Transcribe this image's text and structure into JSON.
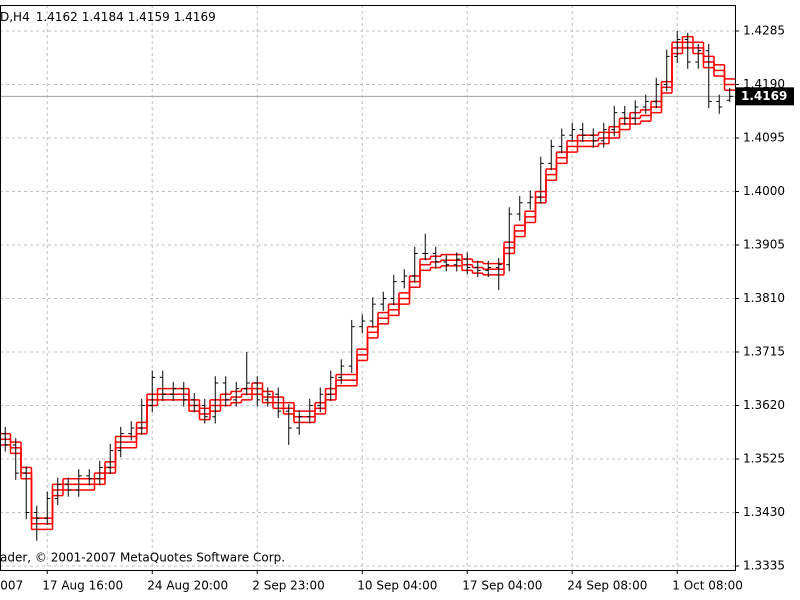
{
  "chart_data": {
    "type": "ohlc",
    "symbol": "D,H4",
    "copyright": "ader, © 2001-2007 MetaQuotes Software Corp.",
    "bar_color": "#000000",
    "current_price_color": "#000000",
    "grid": true,
    "ylim": [
      1.33279,
      1.43312
    ],
    "yticks": [
      1.4285,
      {
        "value": 1.419,
        "label": "1.4190"
      },
      1.4095,
      {
        "value": 1.4,
        "label": "1.4000"
      },
      1.3905,
      {
        "value": 1.381,
        "label": "1.3810"
      },
      1.3715,
      {
        "value": 1.362,
        "label": "1.3620"
      },
      1.3525,
      {
        "value": 1.343,
        "label": "1.3430"
      },
      1.3335
    ],
    "categories": [
      "007",
      null,
      null,
      null,
      "17 Aug 16:00",
      null,
      null,
      null,
      null,
      null,
      null,
      null,
      null,
      null,
      "24 Aug 20:00",
      null,
      null,
      null,
      null,
      null,
      null,
      null,
      null,
      null,
      "2 Sep 23:00",
      null,
      null,
      null,
      null,
      null,
      null,
      null,
      null,
      null,
      "10 Sep 04:00",
      null,
      null,
      null,
      null,
      null,
      null,
      null,
      null,
      null,
      "17 Sep 04:00",
      null,
      null,
      null,
      null,
      null,
      null,
      null,
      null,
      null,
      "24 Sep 08:00",
      null,
      null,
      null,
      null,
      null,
      null,
      null,
      null,
      null,
      "1 Oct 08:00",
      null,
      null,
      null,
      null,
      null
    ],
    "open": [
      1.357,
      1.355,
      1.35,
      1.343,
      1.342,
      1.3455,
      1.348,
      1.347,
      1.3495,
      1.349,
      1.351,
      1.354,
      1.357,
      1.358,
      1.362,
      1.367,
      1.364,
      1.365,
      1.363,
      1.362,
      1.36,
      1.366,
      1.363,
      1.365,
      1.366,
      1.363,
      1.364,
      1.361,
      1.358,
      1.36,
      1.362,
      1.364,
      1.367,
      1.369,
      1.376,
      1.377,
      1.38,
      1.381,
      1.384,
      1.385,
      1.389,
      1.389,
      1.3875,
      1.387,
      1.388,
      1.3865,
      1.386,
      1.3865,
      1.387,
      1.396,
      1.398,
      1.399,
      1.405,
      1.408,
      1.41,
      1.411,
      1.41,
      1.409,
      1.411,
      1.414,
      1.413,
      1.415,
      1.416,
      1.419,
      1.424,
      1.427,
      1.423,
      1.425,
      1.416,
      1.4162
    ],
    "high": [
      1.3582,
      1.3562,
      1.3512,
      1.3442,
      1.3467,
      1.3492,
      1.3492,
      1.3507,
      1.3507,
      1.3522,
      1.3552,
      1.3582,
      1.3592,
      1.3632,
      1.3682,
      1.3682,
      1.3662,
      1.3662,
      1.3642,
      1.3632,
      1.3672,
      1.3672,
      1.3662,
      1.3715,
      1.3672,
      1.3652,
      1.3652,
      1.3622,
      1.3612,
      1.3632,
      1.3652,
      1.3682,
      1.3702,
      1.3772,
      1.3782,
      1.3812,
      1.3822,
      1.3852,
      1.3862,
      1.3902,
      1.3925,
      1.3902,
      1.3887,
      1.3892,
      1.3892,
      1.3877,
      1.3877,
      1.3882,
      1.3972,
      1.3992,
      1.4002,
      1.4062,
      1.4092,
      1.4112,
      1.4122,
      1.4122,
      1.4112,
      1.4122,
      1.4152,
      1.4152,
      1.4162,
      1.4172,
      1.4202,
      1.4252,
      1.4285,
      1.4282,
      1.4262,
      1.4262,
      1.4172,
      1.4184
    ],
    "low": [
      1.3538,
      1.3488,
      1.3418,
      1.338,
      1.3408,
      1.3443,
      1.3458,
      1.3458,
      1.3478,
      1.3478,
      1.3498,
      1.3528,
      1.3558,
      1.3568,
      1.3608,
      1.3628,
      1.3628,
      1.3618,
      1.3608,
      1.3588,
      1.3588,
      1.3618,
      1.3618,
      1.3638,
      1.3618,
      1.3618,
      1.3598,
      1.355,
      1.3568,
      1.3588,
      1.3608,
      1.3628,
      1.3658,
      1.3678,
      1.3748,
      1.3758,
      1.3788,
      1.3798,
      1.3828,
      1.3838,
      1.3878,
      1.3863,
      1.3858,
      1.3858,
      1.3853,
      1.3848,
      1.3848,
      1.3825,
      1.3858,
      1.3948,
      1.3968,
      1.3978,
      1.4038,
      1.4068,
      1.4088,
      1.4088,
      1.4078,
      1.4078,
      1.4098,
      1.4118,
      1.4118,
      1.4138,
      1.4148,
      1.4178,
      1.4228,
      1.4218,
      1.4218,
      1.4148,
      1.4138,
      1.4159
    ],
    "close": [
      1.355,
      1.35,
      1.343,
      1.342,
      1.3455,
      1.348,
      1.347,
      1.3495,
      1.349,
      1.351,
      1.354,
      1.357,
      1.358,
      1.362,
      1.367,
      1.364,
      1.365,
      1.363,
      1.362,
      1.36,
      1.366,
      1.363,
      1.365,
      1.366,
      1.363,
      1.364,
      1.361,
      1.358,
      1.36,
      1.362,
      1.364,
      1.367,
      1.369,
      1.376,
      1.377,
      1.38,
      1.381,
      1.384,
      1.385,
      1.389,
      1.389,
      1.3875,
      1.387,
      1.388,
      1.3865,
      1.386,
      1.3865,
      1.387,
      1.396,
      1.398,
      1.399,
      1.405,
      1.408,
      1.41,
      1.411,
      1.41,
      1.409,
      1.411,
      1.414,
      1.413,
      1.415,
      1.416,
      1.419,
      1.424,
      1.427,
      1.423,
      1.425,
      1.416,
      1.415,
      1.4169
    ],
    "series": [
      {
        "color": "#ff0000",
        "values": [
          1.357,
          1.3555,
          1.351,
          1.342,
          1.342,
          1.348,
          1.349,
          1.349,
          1.349,
          1.35,
          1.352,
          1.3565,
          1.3565,
          1.359,
          1.364,
          1.365,
          1.365,
          1.365,
          1.363,
          1.3615,
          1.363,
          1.364,
          1.3645,
          1.365,
          1.366,
          1.3645,
          1.3635,
          1.3625,
          1.361,
          1.361,
          1.3625,
          1.365,
          1.3675,
          1.3675,
          1.372,
          1.376,
          1.3785,
          1.38,
          1.382,
          1.385,
          1.388,
          1.3885,
          1.3888,
          1.3888,
          1.388,
          1.3875,
          1.3872,
          1.3872,
          1.391,
          1.394,
          1.3965,
          1.4,
          1.404,
          1.407,
          1.409,
          1.41,
          1.41,
          1.4105,
          1.4115,
          1.413,
          1.414,
          1.4145,
          1.416,
          1.4195,
          1.4265,
          1.4275,
          1.4265,
          1.424,
          1.4225,
          1.42
        ]
      },
      {
        "color": "#ff0000",
        "values": [
          1.356,
          1.3545,
          1.35,
          1.341,
          1.341,
          1.347,
          1.348,
          1.348,
          1.348,
          1.349,
          1.351,
          1.3555,
          1.3555,
          1.358,
          1.363,
          1.364,
          1.364,
          1.364,
          1.362,
          1.3605,
          1.362,
          1.363,
          1.3635,
          1.364,
          1.365,
          1.3635,
          1.3625,
          1.3615,
          1.36,
          1.36,
          1.3615,
          1.364,
          1.3665,
          1.3665,
          1.371,
          1.375,
          1.3775,
          1.379,
          1.381,
          1.384,
          1.387,
          1.3875,
          1.3878,
          1.3878,
          1.387,
          1.3865,
          1.3862,
          1.3862,
          1.39,
          1.393,
          1.3955,
          1.399,
          1.403,
          1.406,
          1.408,
          1.409,
          1.409,
          1.4095,
          1.4105,
          1.412,
          1.413,
          1.4135,
          1.415,
          1.4185,
          1.4255,
          1.4265,
          1.4255,
          1.423,
          1.4215,
          1.419
        ]
      },
      {
        "color": "#ff0000",
        "values": [
          1.355,
          1.3535,
          1.349,
          1.34,
          1.34,
          1.346,
          1.347,
          1.347,
          1.347,
          1.348,
          1.35,
          1.3545,
          1.3545,
          1.357,
          1.362,
          1.363,
          1.363,
          1.363,
          1.361,
          1.3595,
          1.361,
          1.362,
          1.3625,
          1.363,
          1.364,
          1.3625,
          1.3615,
          1.3605,
          1.359,
          1.359,
          1.3605,
          1.363,
          1.3655,
          1.3655,
          1.37,
          1.374,
          1.3765,
          1.378,
          1.38,
          1.383,
          1.386,
          1.3865,
          1.3868,
          1.3868,
          1.386,
          1.3855,
          1.3852,
          1.3852,
          1.389,
          1.392,
          1.3945,
          1.398,
          1.402,
          1.405,
          1.407,
          1.408,
          1.408,
          1.4085,
          1.4095,
          1.411,
          1.412,
          1.4125,
          1.414,
          1.4175,
          1.4245,
          1.4255,
          1.4245,
          1.422,
          1.4205,
          1.418
        ]
      }
    ]
  }
}
